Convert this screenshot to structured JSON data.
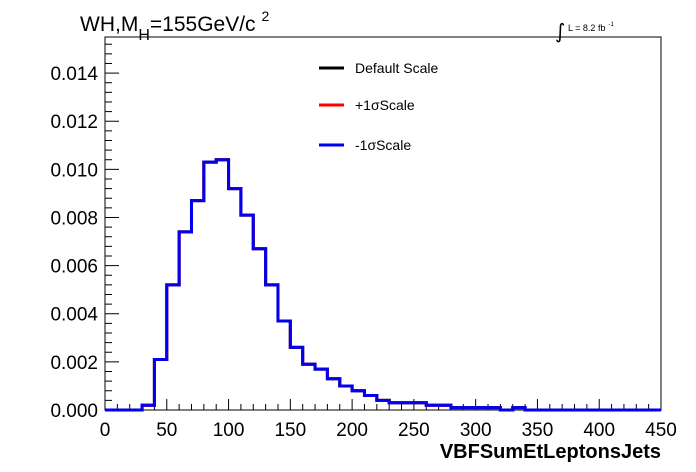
{
  "chart_data": {
    "type": "histogram",
    "title_prefix": "WH,M",
    "title_sub": "H",
    "title_suffix": "=155GeV/c",
    "title_sup": "2",
    "lumi_symbol": "∫",
    "lumi_text": "L = 8.2 fb",
    "lumi_sup": "-1",
    "xlabel": "VBFSumEtLeptonsJets",
    "xlim": [
      0,
      450
    ],
    "ylim": [
      0,
      0.0155
    ],
    "x_ticks": [
      0,
      50,
      100,
      150,
      200,
      250,
      300,
      350,
      400,
      450
    ],
    "x_tick_labels": [
      "0",
      "50",
      "100",
      "150",
      "200",
      "250",
      "300",
      "350",
      "400",
      "450"
    ],
    "y_ticks": [
      0,
      0.002,
      0.004,
      0.006,
      0.008,
      0.01,
      0.012,
      0.014
    ],
    "y_tick_labels": [
      "0.000",
      "0.002",
      "0.004",
      "0.006",
      "0.008",
      "0.010",
      "0.012",
      "0.014"
    ],
    "bin_width": 10,
    "bin_edges_start": 0,
    "series": [
      {
        "name": "Default Scale",
        "color": "#000000",
        "values": [
          0,
          0,
          0,
          0.0002,
          0.0021,
          0.0052,
          0.0074,
          0.0087,
          0.0103,
          0.0104,
          0.0092,
          0.0081,
          0.0067,
          0.0052,
          0.0037,
          0.0026,
          0.0019,
          0.0017,
          0.0013,
          0.001,
          0.0008,
          0.0006,
          0.0004,
          0.0003,
          0.0003,
          0.0003,
          0.0002,
          0.0002,
          0.0001,
          0.0001,
          0.0001,
          0.0001,
          0,
          0.0001,
          0,
          0,
          0,
          0,
          0,
          0,
          0,
          0,
          0,
          0,
          0
        ]
      },
      {
        "name": "+1σScale",
        "color": "#ff0000",
        "values": [
          0,
          0,
          0,
          0.0002,
          0.0021,
          0.0052,
          0.0074,
          0.0087,
          0.0103,
          0.0104,
          0.0092,
          0.0081,
          0.0067,
          0.0052,
          0.0037,
          0.0026,
          0.0019,
          0.0017,
          0.0013,
          0.001,
          0.0008,
          0.0006,
          0.0004,
          0.0003,
          0.0003,
          0.0003,
          0.0002,
          0.0002,
          0.0001,
          0.0001,
          0.0001,
          0.0001,
          0,
          0.0001,
          0,
          0,
          0,
          0,
          0,
          0,
          0,
          0,
          0,
          0,
          0
        ]
      },
      {
        "name": "-1σScale",
        "color": "#0000ee",
        "values": [
          0,
          0,
          0,
          0.0002,
          0.0021,
          0.0052,
          0.0074,
          0.0087,
          0.0103,
          0.0104,
          0.0092,
          0.0081,
          0.0067,
          0.0052,
          0.0037,
          0.0026,
          0.0019,
          0.0017,
          0.0013,
          0.001,
          0.0008,
          0.0006,
          0.0004,
          0.0003,
          0.0003,
          0.0003,
          0.0002,
          0.0002,
          0.0001,
          0.0001,
          0.0001,
          0.0001,
          0,
          0.0001,
          0,
          0,
          0,
          0,
          0,
          0,
          0,
          0,
          0,
          0,
          0
        ]
      }
    ],
    "legend_position": "top-center"
  }
}
